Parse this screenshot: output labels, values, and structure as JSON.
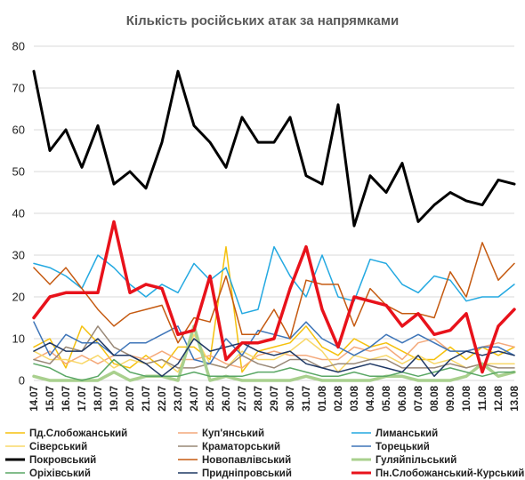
{
  "chart_data": {
    "type": "line",
    "title": "Кількість російських атак за напрямками",
    "xlabel": "",
    "ylabel": "",
    "ylim": [
      0,
      80
    ],
    "yticks": [
      0,
      10,
      20,
      30,
      40,
      50,
      60,
      70,
      80
    ],
    "grid": true,
    "legend_position": "bottom",
    "x": [
      "14.07",
      "15.07",
      "16.07",
      "17.07",
      "18.07",
      "19.07",
      "20.07",
      "21.07",
      "22.07",
      "23.07",
      "24.07",
      "25.07",
      "26.07",
      "27.07",
      "28.07",
      "29.07",
      "30.07",
      "31.07",
      "01.08",
      "02.08",
      "03.08",
      "04.08",
      "05.08",
      "06.08",
      "07.08",
      "08.08",
      "09.08",
      "10.08",
      "11.08",
      "12.08",
      "13.08"
    ],
    "series": [
      {
        "name": "Пд.Слобожанський",
        "color": "#f5c10e",
        "width": 1.5,
        "values": [
          8,
          10,
          3,
          13,
          9,
          4,
          3,
          6,
          3,
          8,
          8,
          5,
          32,
          2,
          7,
          8,
          9,
          13,
          8,
          6,
          10,
          8,
          9,
          7,
          5,
          5,
          8,
          5,
          8,
          6,
          8
        ]
      },
      {
        "name": "Куп'янський",
        "color": "#f4a97b",
        "width": 1.5,
        "values": [
          5,
          7,
          4,
          6,
          4,
          6,
          6,
          5,
          7,
          5,
          5,
          6,
          4,
          3,
          6,
          7,
          6,
          6,
          5,
          5,
          8,
          7,
          8,
          5,
          9,
          10,
          7,
          7,
          8,
          9,
          8
        ]
      },
      {
        "name": "Лиманський",
        "color": "#24a9e1",
        "width": 1.5,
        "values": [
          28,
          27,
          25,
          22,
          30,
          27,
          23,
          20,
          23,
          21,
          28,
          24,
          27,
          16,
          17,
          32,
          25,
          20,
          30,
          20,
          19,
          29,
          28,
          23,
          21,
          25,
          24,
          19,
          20,
          20,
          23
        ]
      },
      {
        "name": "Сіверський",
        "color": "#f8d86a",
        "width": 1.5,
        "values": [
          7,
          5,
          5,
          4,
          6,
          3,
          5,
          4,
          5,
          2,
          11,
          4,
          3,
          7,
          5,
          5,
          7,
          10,
          7,
          2,
          6,
          5,
          6,
          4,
          6,
          4,
          5,
          3,
          4,
          4,
          4
        ]
      },
      {
        "name": "Краматорський",
        "color": "#998877",
        "width": 1.5,
        "values": [
          5,
          4,
          8,
          7,
          13,
          8,
          6,
          4,
          5,
          3,
          3,
          4,
          3,
          6,
          4,
          3,
          5,
          5,
          3,
          4,
          4,
          5,
          5,
          3,
          3,
          3,
          4,
          3,
          4,
          3,
          3
        ]
      },
      {
        "name": "Торецький",
        "color": "#3e75b8",
        "width": 1.5,
        "values": [
          14,
          6,
          11,
          9,
          9,
          6,
          9,
          9,
          11,
          13,
          5,
          4,
          10,
          6,
          12,
          11,
          10,
          14,
          10,
          8,
          6,
          8,
          11,
          9,
          11,
          9,
          7,
          7,
          8,
          8,
          6
        ]
      },
      {
        "name": "Покровський",
        "color": "#000000",
        "width": 3,
        "values": [
          74,
          55,
          60,
          51,
          61,
          47,
          50,
          46,
          57,
          74,
          61,
          57,
          51,
          63,
          57,
          57,
          63,
          49,
          47,
          66,
          37,
          49,
          45,
          52,
          38,
          42,
          45,
          43,
          42,
          48,
          47
        ]
      },
      {
        "name": "Новопавлівський",
        "color": "#c55a11",
        "width": 1.5,
        "values": [
          27,
          23,
          27,
          22,
          17,
          13,
          16,
          17,
          18,
          9,
          15,
          14,
          25,
          11,
          11,
          17,
          10,
          24,
          23,
          23,
          13,
          22,
          18,
          16,
          16,
          15,
          26,
          20,
          33,
          24,
          28
        ]
      },
      {
        "name": "Гуляйпільський",
        "color": "#a9d08e",
        "width": 3.5,
        "values": [
          1,
          0,
          0,
          0,
          0,
          2,
          0,
          1,
          1,
          0,
          13,
          0,
          1,
          0,
          0,
          0,
          0,
          1,
          0,
          0,
          0,
          0,
          1,
          1,
          0,
          0,
          0,
          1,
          4,
          1,
          2
        ]
      },
      {
        "name": "Оріхівський",
        "color": "#5aa765",
        "width": 1.5,
        "values": [
          4,
          3,
          1,
          0,
          1,
          5,
          2,
          1,
          1,
          1,
          2,
          1,
          1,
          1,
          2,
          2,
          3,
          2,
          1,
          1,
          2,
          1,
          1,
          2,
          1,
          2,
          3,
          2,
          1,
          2,
          2
        ]
      },
      {
        "name": "Придніпровський",
        "color": "#1f3864",
        "width": 1.5,
        "values": [
          7,
          9,
          7,
          7,
          10,
          6,
          6,
          4,
          1,
          4,
          10,
          7,
          8,
          9,
          7,
          6,
          7,
          4,
          3,
          2,
          3,
          4,
          3,
          2,
          6,
          1,
          5,
          7,
          6,
          7,
          6
        ]
      },
      {
        "name": "Пн.Слобожанський-Курський",
        "color": "#e8121b",
        "width": 3.5,
        "values": [
          15,
          20,
          21,
          21,
          21,
          38,
          21,
          23,
          22,
          11,
          12,
          25,
          5,
          9,
          9,
          10,
          22,
          32,
          17,
          8,
          20,
          19,
          18,
          13,
          16,
          11,
          12,
          16,
          2,
          13,
          17
        ]
      }
    ]
  }
}
